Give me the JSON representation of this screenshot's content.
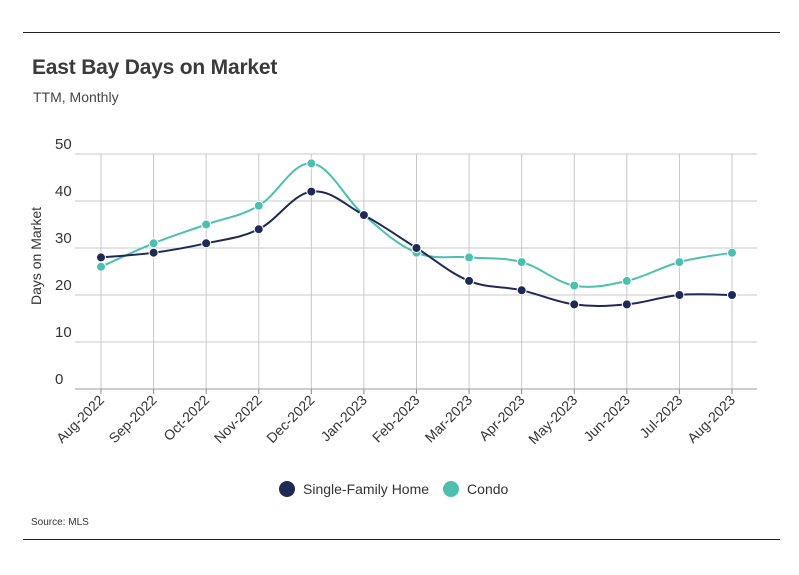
{
  "title": "East Bay Days on Market",
  "subtitle": "TTM, Monthly",
  "source": "Source:  MLS",
  "colors": {
    "single_family": "#1e2a55",
    "condo": "#4cbfae",
    "grid": "#c8c8c8"
  },
  "chart_data": {
    "type": "line",
    "title": "East Bay Days on Market",
    "subtitle": "TTM, Monthly",
    "xlabel": "",
    "ylabel": "Days on Market",
    "ylim": [
      0,
      50
    ],
    "yticks": [
      "0",
      "10",
      "20",
      "30",
      "40",
      "50"
    ],
    "grid": true,
    "legend_position": "bottom",
    "categories": [
      "Aug-2022",
      "Sep-2022",
      "Oct-2022",
      "Nov-2022",
      "Dec-2022",
      "Jan-2023",
      "Feb-2023",
      "Mar-2023",
      "Apr-2023",
      "May-2023",
      "Jun-2023",
      "Jul-2023",
      "Aug-2023"
    ],
    "series": [
      {
        "name": "Single-Family Home",
        "color": "#1e2a55",
        "values": [
          28,
          29,
          31,
          34,
          42,
          37,
          30,
          23,
          21,
          18,
          18,
          20,
          20
        ]
      },
      {
        "name": "Condo",
        "color": "#4cbfae",
        "values": [
          26,
          31,
          35,
          39,
          48,
          37,
          29,
          28,
          27,
          22,
          23,
          27,
          29
        ]
      }
    ]
  }
}
